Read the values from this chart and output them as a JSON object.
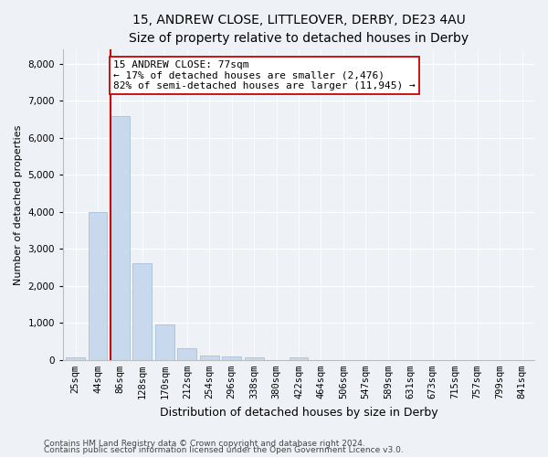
{
  "title": "15, ANDREW CLOSE, LITTLEOVER, DERBY, DE23 4AU",
  "subtitle": "Size of property relative to detached houses in Derby",
  "xlabel": "Distribution of detached houses by size in Derby",
  "ylabel": "Number of detached properties",
  "bar_labels": [
    "25sqm",
    "44sqm",
    "86sqm",
    "128sqm",
    "170sqm",
    "212sqm",
    "254sqm",
    "296sqm",
    "338sqm",
    "380sqm",
    "422sqm",
    "464sqm",
    "506sqm",
    "547sqm",
    "589sqm",
    "631sqm",
    "673sqm",
    "715sqm",
    "757sqm",
    "799sqm",
    "841sqm"
  ],
  "bar_heights": [
    80,
    4000,
    6580,
    2620,
    950,
    320,
    130,
    105,
    65,
    0,
    80,
    0,
    0,
    0,
    0,
    0,
    0,
    0,
    0,
    0,
    0
  ],
  "bar_color": "#c9d9ed",
  "bar_edgecolor": "#a8c0d8",
  "marker_bin": 2,
  "marker_color": "#cc0000",
  "annotation_text": "15 ANDREW CLOSE: 77sqm\n← 17% of detached houses are smaller (2,476)\n82% of semi-detached houses are larger (11,945) →",
  "annotation_box_color": "#ffffff",
  "annotation_box_edgecolor": "#cc0000",
  "ylim": [
    0,
    8400
  ],
  "yticks": [
    0,
    1000,
    2000,
    3000,
    4000,
    5000,
    6000,
    7000,
    8000
  ],
  "footer_line1": "Contains HM Land Registry data © Crown copyright and database right 2024.",
  "footer_line2": "Contains public sector information licensed under the Open Government Licence v3.0.",
  "bg_color": "#eef2f7",
  "grid_color": "#ffffff",
  "title_fontsize": 10,
  "subtitle_fontsize": 9,
  "xlabel_fontsize": 9,
  "ylabel_fontsize": 8,
  "tick_fontsize": 7.5,
  "annot_fontsize": 8,
  "footer_fontsize": 6.5
}
